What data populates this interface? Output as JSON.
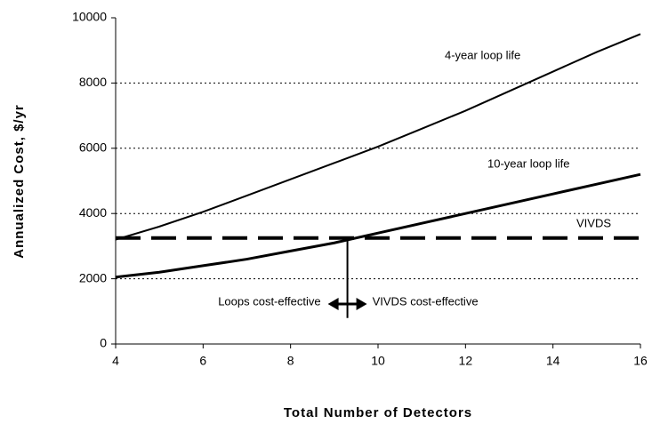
{
  "chart_data": {
    "type": "line",
    "x_label": "Total Number of Detectors",
    "y_label": "Annualized Cost, $/yr",
    "x": [
      4,
      5,
      6,
      7,
      8,
      9,
      10,
      11,
      12,
      13,
      14,
      15,
      16
    ],
    "series": [
      {
        "name": "4-year loop life",
        "color": "#000000",
        "values": [
          3200,
          3600,
          4050,
          4550,
          5050,
          5550,
          6050,
          6600,
          7150,
          7750,
          8350,
          8950,
          9500
        ]
      },
      {
        "name": "10-year loop life",
        "color": "#000000",
        "values": [
          2050,
          2200,
          2400,
          2600,
          2850,
          3100,
          3400,
          3700,
          4000,
          4300,
          4600,
          4900,
          5200
        ]
      },
      {
        "name": "VIVDS",
        "color": "#000000",
        "dashed": true,
        "values": [
          3250,
          3250,
          3250,
          3250,
          3250,
          3250,
          3250,
          3250,
          3250,
          3250,
          3250,
          3250,
          3250
        ]
      }
    ],
    "crossover": {
      "x": 9.3,
      "left_label": "Loops cost-effective",
      "right_label": "VIVDS cost-effective"
    },
    "xlim": [
      4,
      16
    ],
    "xticks": [
      4,
      6,
      8,
      10,
      12,
      14,
      16
    ],
    "ylim": [
      0,
      10000
    ],
    "yticks": [
      0,
      2000,
      4000,
      6000,
      8000,
      10000
    ],
    "grid": true
  }
}
